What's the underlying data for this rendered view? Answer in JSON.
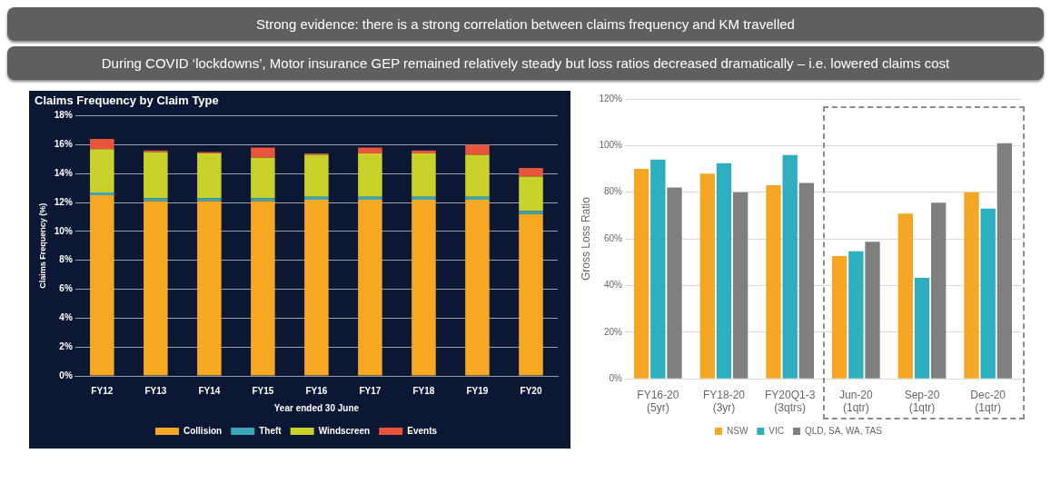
{
  "chart_data": [
    {
      "type": "other",
      "title": "Strong evidence: there is a strong correlation between claims frequency and KM travelled",
      "subtitle": "During COVID ‘lockdowns’, Motor insurance GEP remained relatively steady but loss ratios decreased dramatically – i.e. lowered claims cost"
    },
    {
      "type": "bar",
      "title": "Claims Frequency by Claim Type",
      "xlabel": "Year ended 30 June",
      "ylabel": "Claims Frequency (%)",
      "stacked": true,
      "grid": "y",
      "legend": "bottom",
      "categories": [
        "FY12",
        "FY13",
        "FY14",
        "FY15",
        "FY16",
        "FY17",
        "FY18",
        "FY19",
        "FY20"
      ],
      "ylim": [
        0,
        18
      ],
      "yticks": [
        {
          "value": 0,
          "label": "0%"
        },
        {
          "value": 2,
          "label": "2%"
        },
        {
          "value": 4,
          "label": "4%"
        },
        {
          "value": 6,
          "label": "6%"
        },
        {
          "value": 8,
          "label": "8%"
        },
        {
          "value": 10,
          "label": "10%"
        },
        {
          "value": 12,
          "label": "12%"
        },
        {
          "value": 14,
          "label": "14%"
        },
        {
          "value": 16,
          "label": "16%"
        },
        {
          "value": 18,
          "label": "18%"
        }
      ],
      "series": [
        {
          "name": "Collision",
          "color": "#f7a823",
          "values": [
            12.5,
            12.1,
            12.1,
            12.1,
            12.2,
            12.2,
            12.2,
            12.2,
            11.2
          ]
        },
        {
          "name": "Theft",
          "color": "#3aa6b9",
          "values": [
            0.2,
            0.2,
            0.2,
            0.2,
            0.2,
            0.2,
            0.2,
            0.2,
            0.2
          ]
        },
        {
          "name": "Windscreen",
          "color": "#c8d22a",
          "values": [
            3.0,
            3.2,
            3.1,
            2.8,
            2.9,
            3.0,
            3.0,
            2.9,
            2.4
          ]
        },
        {
          "name": "Events",
          "color": "#e8553a",
          "values": [
            0.7,
            0.1,
            0.1,
            0.7,
            0.1,
            0.4,
            0.2,
            0.7,
            0.6
          ]
        }
      ]
    },
    {
      "type": "bar",
      "ylabel": "Gross Loss Ratio",
      "grid": "y",
      "legend": "bottom",
      "categories": [
        "FY16-20 (5yr)",
        "FY18-20 (3yr)",
        "FY20Q1-3 (3qtrs)",
        "Jun-20 (1qtr)",
        "Sep-20 (1qtr)",
        "Dec-20 (1qtr)"
      ],
      "ylim": [
        0,
        120
      ],
      "yticks": [
        {
          "value": 0,
          "label": "0%"
        },
        {
          "value": 20,
          "label": "20%"
        },
        {
          "value": 40,
          "label": "40%"
        },
        {
          "value": 60,
          "label": "60%"
        },
        {
          "value": 80,
          "label": "80%"
        },
        {
          "value": 100,
          "label": "100%"
        },
        {
          "value": 120,
          "label": "120%"
        }
      ],
      "series": [
        {
          "name": "NSW",
          "color": "#f5a623",
          "values": [
            90,
            88,
            83,
            52.6,
            70.8,
            80
          ]
        },
        {
          "name": "VIC",
          "color": "#2eafc0",
          "values": [
            94,
            92.5,
            96,
            54.7,
            43.3,
            73
          ]
        },
        {
          "name": "QLD, SA, WA, TAS",
          "color": "#7f7f7f",
          "values": [
            82,
            80,
            84,
            58.8,
            75.5,
            101
          ]
        }
      ]
    }
  ]
}
